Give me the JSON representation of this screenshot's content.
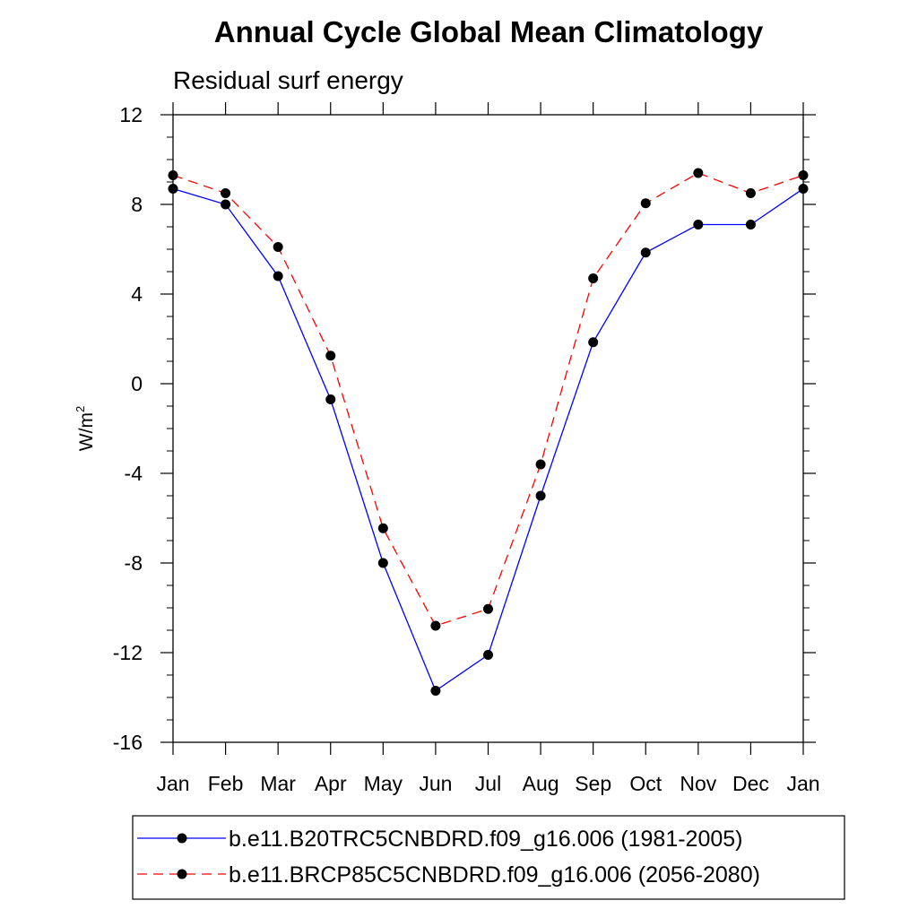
{
  "chart_data": {
    "type": "line",
    "title": "Annual Cycle Global Mean Climatology",
    "subtitle": "Residual surf energy",
    "xlabel": "",
    "ylabel": "W/m",
    "ylabel_superscript": "2",
    "categories": [
      "Jan",
      "Feb",
      "Mar",
      "Apr",
      "May",
      "Jun",
      "Jul",
      "Aug",
      "Sep",
      "Oct",
      "Nov",
      "Dec",
      "Jan"
    ],
    "ylim": [
      -16,
      12
    ],
    "yticks": [
      -16,
      -12,
      -8,
      -4,
      0,
      4,
      8,
      12
    ],
    "ytick_labels": [
      "-16",
      "-12",
      "-8",
      "-4",
      "0",
      "4",
      "8",
      "12"
    ],
    "grid": false,
    "legend_position": "bottom",
    "series": [
      {
        "name": "b.e11.B20TRC5CNBDRD.f09_g16.006 (1981-2005)",
        "color": "#0000ff",
        "dash": "solid",
        "values": [
          8.7,
          8.0,
          4.8,
          -0.7,
          -8.0,
          -13.7,
          -12.1,
          -5.0,
          1.85,
          5.85,
          7.1,
          7.1,
          8.7
        ]
      },
      {
        "name": "b.e11.BRCP85C5CNBDRD.f09_g16.006 (2056-2080)",
        "color": "#ff0000",
        "dash": "dashed",
        "values": [
          9.3,
          8.5,
          6.1,
          1.25,
          -6.45,
          -10.8,
          -10.05,
          -3.6,
          4.7,
          8.05,
          9.4,
          8.5,
          9.3
        ]
      }
    ]
  }
}
